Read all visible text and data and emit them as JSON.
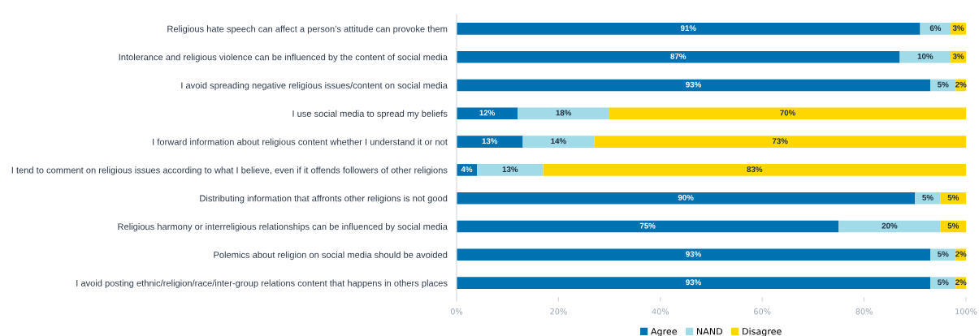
{
  "chart_data": {
    "type": "bar",
    "orientation": "horizontal",
    "stacked": true,
    "categories": [
      "Religious hate speech can affect a person’s attitude can provoke them",
      "Intolerance and religious violence can be influenced by the content of social media",
      "I avoid spreading negative religious issues/content on social media",
      "I use social media to spread my beliefs",
      "I forward information about religious content whether I understand it or not",
      "I tend to comment on religious issues according to what I believe, even if it offends followers of other religions",
      "Distributing information that affronts other religions is not good",
      "Religious harmony or interreligious relationships can be influenced by social media",
      "Polemics about religion on social media should be avoided",
      "I avoid posting ethnic/religion/race/inter-group relations content that happens in others places"
    ],
    "series": [
      {
        "name": "Agree",
        "color": "#0072b2",
        "values": [
          91,
          87,
          93,
          12,
          13,
          4,
          90,
          75,
          93,
          93
        ],
        "value_labels": [
          "91%",
          "87%",
          "93%",
          "12%",
          "13%",
          "4%",
          "90%",
          "75%",
          "93%",
          "93%"
        ]
      },
      {
        "name": "NAND",
        "color": "#a2dbe8",
        "values": [
          6,
          10,
          5,
          18,
          14,
          13,
          5,
          20,
          5,
          5
        ],
        "value_labels": [
          "6%",
          "10%",
          "5%",
          "18%",
          "14%",
          "13%",
          "5%",
          "20%",
          "5%",
          "5%"
        ]
      },
      {
        "name": "Disagree",
        "color": "#ffd700",
        "values": [
          3,
          3,
          2,
          70,
          73,
          83,
          5,
          5,
          2,
          2
        ],
        "value_labels": [
          "3%",
          "3%",
          "2%",
          "70%",
          "73%",
          "83%",
          "5%",
          "5%",
          "2%",
          "2%"
        ]
      }
    ],
    "xlim": [
      0,
      100
    ],
    "xticks": [
      {
        "value": 0,
        "label": "0%"
      },
      {
        "value": 20,
        "label": "20%"
      },
      {
        "value": 40,
        "label": "40%"
      },
      {
        "value": 60,
        "label": "60%"
      },
      {
        "value": 80,
        "label": "80%"
      },
      {
        "value": 100,
        "label": "100%"
      }
    ],
    "grid": false,
    "legend": "bottom"
  }
}
